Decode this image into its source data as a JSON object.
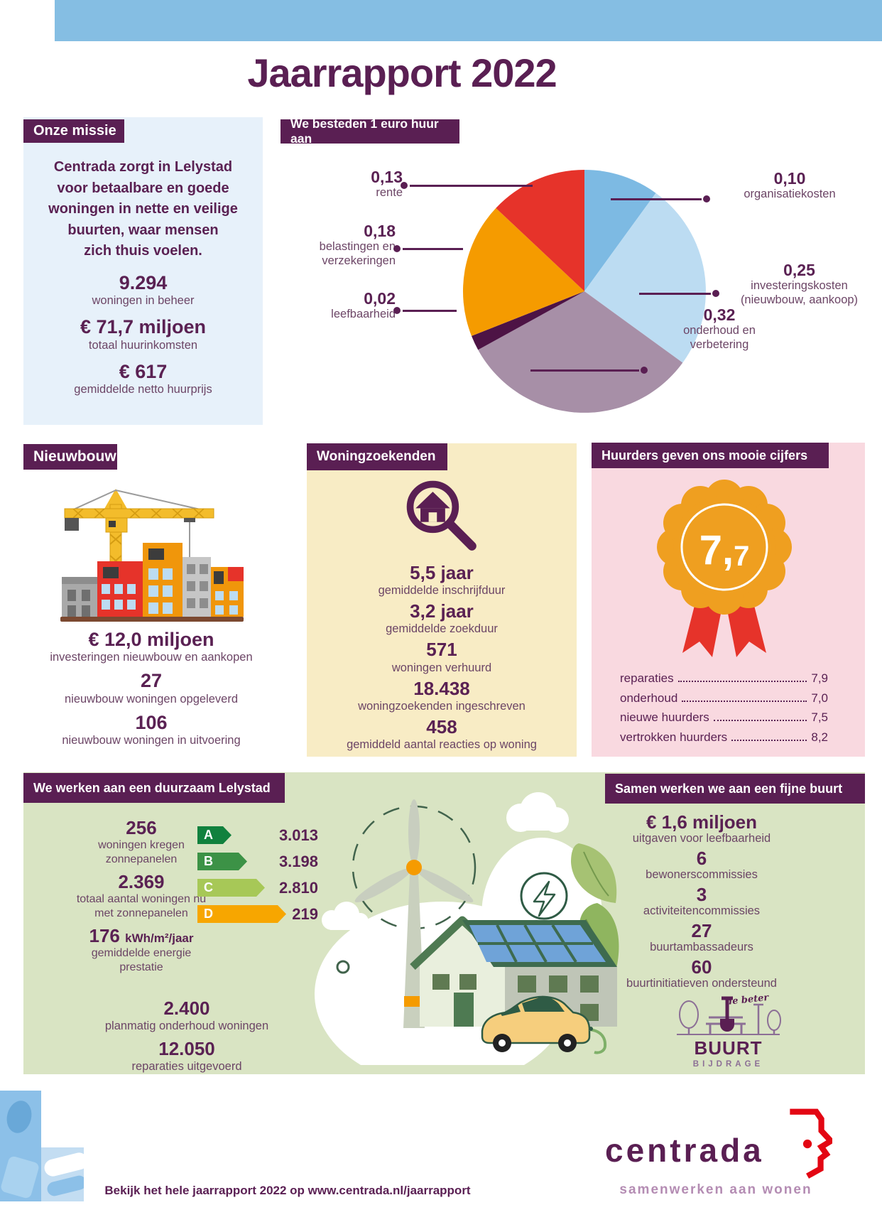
{
  "page": {
    "title": "Jaarrapport 2022"
  },
  "colors": {
    "purple": "#5A1F53",
    "header_blue": "#85BEE3",
    "mission_bg": "#E7F1FA",
    "yellow_bg": "#F8ECC5",
    "pink_bg": "#F9D9E0",
    "green_bg": "#D9E4C3",
    "rosette_orange": "#EF9F20",
    "ribbon_red": "#E6332A",
    "logo_red": "#E30613"
  },
  "mission": {
    "badge": "Onze missie",
    "text": "Centrada zorgt in Lelystad\nvoor betaalbare en goede\nwoningen in nette en veilige\nbuurten, waar mensen\nzich thuis voelen.",
    "stats": [
      {
        "value": "9.294",
        "label": "woningen in beheer"
      },
      {
        "value": "€ 71,7 miljoen",
        "label": "totaal huurinkomsten"
      },
      {
        "value": "€ 617",
        "label": "gemiddelde netto huurprijs"
      }
    ]
  },
  "chart": {
    "badge": "We besteden 1 euro huur aan"
  },
  "chart_data": [
    {
      "type": "pie",
      "title": "We besteden 1 euro huur aan",
      "start": "top, clockwise",
      "slices": [
        {
          "name": "organisatiekosten",
          "label": "0,10",
          "value": 0.1,
          "color": "#7DBAE3"
        },
        {
          "name": "investeringskosten (nieuwbouw, aankoop)",
          "label": "0,25",
          "value": 0.25,
          "color": "#BCDCF2"
        },
        {
          "name": "onderhoud en verbetering",
          "label": "0,32",
          "value": 0.32,
          "color": "#A78FA7"
        },
        {
          "name": "leefbaarheid",
          "label": "0,02",
          "value": 0.02,
          "color": "#4D1345"
        },
        {
          "name": "belastingen en verzekeringen",
          "label": "0,18",
          "value": 0.18,
          "color": "#F59B00"
        },
        {
          "name": "rente",
          "label": "0,13",
          "value": 0.13,
          "color": "#E6332A"
        }
      ]
    },
    {
      "type": "bar",
      "title": "energielabels",
      "categories": [
        "A",
        "B",
        "C",
        "D"
      ],
      "values": [
        3013,
        3198,
        2810,
        219
      ],
      "value_labels": [
        "3.013",
        "3.198",
        "2.810",
        "219"
      ],
      "colors": [
        "#11813E",
        "#3C9246",
        "#A7C857",
        "#F7A600"
      ]
    }
  ],
  "nieuwbouw": {
    "badge": "Nieuwbouw",
    "stats": [
      {
        "value": "€ 12,0 miljoen",
        "label": "investeringen nieuwbouw en aankopen"
      },
      {
        "value": "27",
        "label": "nieuwbouw woningen opgeleverd"
      },
      {
        "value": "106",
        "label": "nieuwbouw woningen in uitvoering"
      }
    ]
  },
  "woningzoekenden": {
    "badge": "Woningzoekenden",
    "stats": [
      {
        "value": "5,5 jaar",
        "label": "gemiddelde inschrijfduur"
      },
      {
        "value": "3,2 jaar",
        "label": "gemiddelde zoekduur"
      },
      {
        "value": "571",
        "label": "woningen verhuurd"
      },
      {
        "value": "18.438",
        "label": "woningzoekenden ingeschreven"
      },
      {
        "value": "458",
        "label": "gemiddeld aantal reacties op woning"
      }
    ]
  },
  "huurders": {
    "badge": "Huurders geven ons mooie cijfers",
    "score": "7,7",
    "ratings": [
      {
        "label": "reparaties",
        "value": "7,9"
      },
      {
        "label": "onderhoud",
        "value": "7,0"
      },
      {
        "label": "nieuwe huurders",
        "value": "7,5"
      },
      {
        "label": "vertrokken huurders",
        "value": "8,2"
      }
    ]
  },
  "duurzaam": {
    "badge": "We werken aan een duurzaam Lelystad",
    "stats_left": [
      {
        "value": "256",
        "label": "woningen kregen zonnepanelen"
      },
      {
        "value": "2.369",
        "label": "totaal aantal woningen nu met zonnepanelen"
      }
    ],
    "energy": {
      "value": "176",
      "unit": "kWh/m²/jaar",
      "label": "gemiddelde energie prestatie"
    },
    "stats_bottom": [
      {
        "value": "2.400",
        "label": "planmatig onderhoud woningen"
      },
      {
        "value": "12.050",
        "label": "reparaties uitgevoerd"
      }
    ]
  },
  "buurt": {
    "badge": "Samen werken we aan een fijne buurt",
    "stats": [
      {
        "value": "€ 1,6 miljoen",
        "label": "uitgaven voor leefbaarheid"
      },
      {
        "value": "6",
        "label": "bewonerscommissies"
      },
      {
        "value": "3",
        "label": "activiteitencommissies"
      },
      {
        "value": "27",
        "label": "buurtambassadeurs"
      },
      {
        "value": "60",
        "label": "buurtinitiatieven ondersteund"
      }
    ],
    "logo": {
      "top": "de beter",
      "name": "BUURT",
      "bottom": "BIJDRAGE"
    }
  },
  "footer": {
    "note": "Bekijk het hele jaarrapport 2022 op www.centrada.nl/jaarrapport",
    "brand": "centrada",
    "tagline": "samenwerken aan wonen"
  }
}
